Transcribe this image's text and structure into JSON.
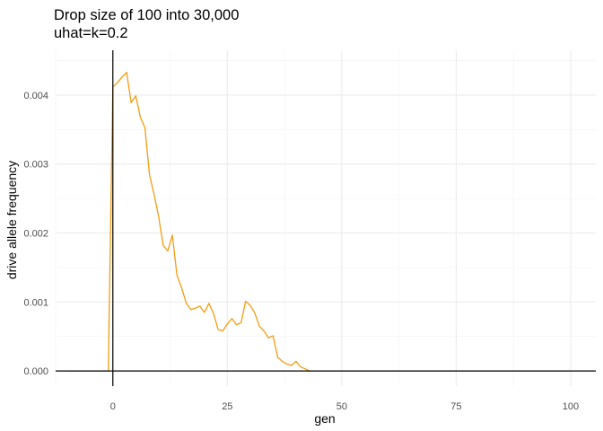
{
  "chart_data": {
    "type": "line",
    "title": "Drop size of 100 into 30,000",
    "subtitle": "uhat=k=0.2",
    "xlabel": "gen",
    "ylabel": "drive allele frequency",
    "xlim": [
      -12.5,
      105.5
    ],
    "ylim": [
      -0.00022,
      0.00465
    ],
    "x_ticks": [
      0,
      25,
      50,
      75,
      100
    ],
    "x_tick_labels": [
      "0",
      "25",
      "50",
      "75",
      "100"
    ],
    "y_ticks": [
      0,
      0.001,
      0.002,
      0.003,
      0.004
    ],
    "y_tick_labels": [
      "0.000",
      "0.001",
      "0.002",
      "0.003",
      "0.004"
    ],
    "grid": true,
    "reference_lines": {
      "vertical_x": 0,
      "horizontal_y": 0
    },
    "series": [
      {
        "color": "#f39c12",
        "x": [
          -10,
          -9,
          -8,
          -7,
          -6,
          -5,
          -4,
          -3,
          -2,
          -1,
          0,
          1,
          2,
          3,
          4,
          5,
          6,
          7,
          8,
          9,
          10,
          11,
          12,
          13,
          14,
          15,
          16,
          17,
          18,
          19,
          20,
          21,
          22,
          23,
          24,
          25,
          26,
          27,
          28,
          29,
          30,
          31,
          32,
          33,
          34,
          35,
          36,
          37,
          38,
          39,
          40,
          41,
          42,
          43,
          45,
          50,
          55,
          60,
          65,
          70,
          75,
          80,
          85,
          90,
          95,
          100
        ],
        "y": [
          0,
          0,
          0,
          0,
          0,
          0,
          0,
          0,
          0,
          0,
          0.00412,
          0.00418,
          0.00426,
          0.00433,
          0.00389,
          0.00399,
          0.00368,
          0.00353,
          0.00285,
          0.00256,
          0.00224,
          0.00182,
          0.00174,
          0.00197,
          0.00139,
          0.00121,
          0.00099,
          0.00089,
          0.00091,
          0.00094,
          0.00085,
          0.00098,
          0.00083,
          0.0006,
          0.00058,
          0.00068,
          0.00076,
          0.00067,
          0.0007,
          0.00101,
          0.00095,
          0.00084,
          0.00065,
          0.00058,
          0.00048,
          0.00051,
          0.0002,
          0.00014,
          0.0001,
          8e-05,
          0.00014,
          6e-05,
          3e-05,
          0,
          0,
          0,
          0,
          0,
          0,
          0,
          0,
          0,
          0,
          0,
          0,
          0
        ]
      }
    ]
  }
}
